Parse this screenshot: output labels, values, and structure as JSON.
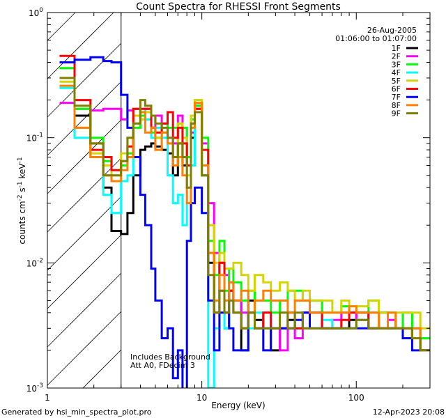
{
  "chart_data": {
    "type": "line",
    "title": "Count Spectra for RHESSI Front Segments",
    "xlabel": "Energy (keV)",
    "ylabel": "counts cm-2 s-1 keV-1",
    "ylabel_parts": [
      "counts cm",
      "-2",
      " s",
      "-1",
      " keV",
      "-1"
    ],
    "xscale": "log",
    "yscale": "log",
    "xlim": [
      1,
      300
    ],
    "ylim": [
      0.001,
      1
    ],
    "xticks": [
      {
        "value": 1,
        "label": "1"
      },
      {
        "value": 10,
        "label": "10"
      },
      {
        "value": 100,
        "label": "100"
      }
    ],
    "yticks": [
      {
        "value": 1,
        "base": "10",
        "exp": "0"
      },
      {
        "value": 0.1,
        "base": "10",
        "exp": "-1"
      },
      {
        "value": 0.01,
        "base": "10",
        "exp": "-2"
      },
      {
        "value": 0.001,
        "base": "10",
        "exp": "-3"
      }
    ],
    "date": "26-Aug-2005",
    "time_range": "01:06:00 to 01:07:00",
    "annotations": [
      "Includes Background",
      "Att A0, FDecim 3"
    ],
    "shaded_region_kev": [
      1,
      3
    ],
    "legend_position": "top-right",
    "bin_edges_kev": [
      1.2,
      1.5,
      1.9,
      2.3,
      2.6,
      3,
      3.3,
      3.6,
      4,
      4.3,
      4.7,
      5,
      5.5,
      6,
      6.5,
      7,
      7.5,
      8,
      8.5,
      9,
      10,
      11,
      12,
      13,
      14,
      15,
      16,
      18,
      20,
      22,
      25,
      28,
      32,
      36,
      40,
      45,
      50,
      60,
      70,
      80,
      90,
      100,
      120,
      140,
      160,
      180,
      200,
      230,
      260,
      300
    ],
    "series": [
      {
        "name": "1F",
        "color": "#000000",
        "values": [
          0.4,
          0.15,
          0.09,
          0.04,
          0.018,
          0.017,
          0.025,
          0.05,
          0.08,
          0.085,
          0.09,
          0.085,
          0.08,
          0.075,
          0.05,
          0.09,
          0.06,
          0.07,
          0.1,
          0.18,
          0.05,
          0.01,
          0.004,
          0.01,
          0.003,
          0.006,
          0.005,
          0.002,
          0.005,
          0.0035,
          0.003,
          0.002,
          0.003,
          0.0035,
          0.003,
          0.004,
          0.004,
          0.003,
          0.003,
          0.003,
          0.0035,
          0.004,
          0.003,
          0.004,
          0.003,
          0.003,
          0.003,
          0.0025,
          0.002
        ]
      },
      {
        "name": "2F",
        "color": "#ff00ff",
        "values": [
          0.19,
          0.17,
          0.165,
          0.17,
          0.17,
          0.14,
          0.165,
          0.17,
          0.16,
          0.17,
          0.12,
          0.15,
          0.13,
          0.1,
          0.09,
          0.15,
          0.12,
          0.07,
          0.11,
          0.17,
          0.09,
          0.03,
          0.012,
          0.006,
          0.008,
          0.007,
          0.005,
          0.004,
          0.004,
          0.003,
          0.004,
          0.003,
          0.002,
          0.003,
          0.0025,
          0.003,
          0.004,
          0.003,
          0.0035,
          0.004,
          0.004,
          0.0035,
          0.004,
          0.003,
          0.0035,
          0.003,
          0.003,
          0.003,
          0.002
        ]
      },
      {
        "name": "3F",
        "color": "#00ff00",
        "values": [
          0.36,
          0.17,
          0.1,
          0.065,
          0.055,
          0.06,
          0.075,
          0.12,
          0.15,
          0.14,
          0.11,
          0.1,
          0.13,
          0.12,
          0.12,
          0.13,
          0.12,
          0.07,
          0.14,
          0.18,
          0.1,
          0.015,
          0.008,
          0.015,
          0.006,
          0.009,
          0.007,
          0.005,
          0.006,
          0.005,
          0.005,
          0.004,
          0.005,
          0.006,
          0.006,
          0.005,
          0.005,
          0.004,
          0.004,
          0.0045,
          0.004,
          0.004,
          0.005,
          0.004,
          0.004,
          0.003,
          0.004,
          0.003,
          0.0025
        ]
      },
      {
        "name": "4F",
        "color": "#00ffff",
        "values": [
          0.25,
          0.1,
          0.07,
          0.035,
          0.025,
          0.045,
          0.05,
          0.17,
          0.17,
          0.14,
          0.1,
          0.12,
          0.1,
          0.05,
          0.03,
          0.035,
          0.02,
          0.03,
          0.06,
          0.2,
          0.05,
          0.001,
          0.003,
          0.004,
          0.003,
          0.005,
          0.004,
          0.003,
          0.003,
          0.004,
          0.003,
          0.003,
          0.004,
          0.004,
          0.003,
          0.004,
          0.004,
          0.0035,
          0.003,
          0.003,
          0.003,
          0.0035,
          0.004,
          0.003,
          0.003,
          0.003,
          0.003,
          0.003,
          0.002
        ]
      },
      {
        "name": "5F",
        "color": "#d4d400",
        "values": [
          0.28,
          0.12,
          0.075,
          0.06,
          0.05,
          0.075,
          0.1,
          0.15,
          0.14,
          0.16,
          0.12,
          0.1,
          0.11,
          0.09,
          0.07,
          0.13,
          0.1,
          0.05,
          0.15,
          0.2,
          0.06,
          0.02,
          0.01,
          0.012,
          0.009,
          0.009,
          0.01,
          0.008,
          0.006,
          0.008,
          0.007,
          0.006,
          0.007,
          0.006,
          0.005,
          0.006,
          0.005,
          0.005,
          0.004,
          0.005,
          0.004,
          0.0045,
          0.005,
          0.004,
          0.004,
          0.004,
          0.004,
          0.004,
          0.003
        ]
      },
      {
        "name": "6F",
        "color": "#ff0000",
        "values": [
          0.45,
          0.2,
          0.08,
          0.07,
          0.055,
          0.065,
          0.085,
          0.17,
          0.17,
          0.17,
          0.12,
          0.11,
          0.13,
          0.16,
          0.1,
          0.12,
          0.09,
          0.06,
          0.13,
          0.17,
          0.08,
          0.012,
          0.004,
          0.01,
          0.004,
          0.006,
          0.004,
          0.003,
          0.004,
          0.003,
          0.004,
          0.003,
          0.003,
          0.004,
          0.003,
          0.004,
          0.004,
          0.003,
          0.003,
          0.0035,
          0.004,
          0.004,
          0.003,
          0.003,
          0.003,
          0.003,
          0.003,
          0.0025,
          0.002
        ]
      },
      {
        "name": "7F",
        "color": "#0000ff",
        "values": [
          0.4,
          0.42,
          0.44,
          0.41,
          0.4,
          0.22,
          0.12,
          0.07,
          0.035,
          0.02,
          0.009,
          0.005,
          0.0025,
          0.003,
          0.0012,
          0.002,
          0.0008,
          0.015,
          0.03,
          0.04,
          0.025,
          0.005,
          0.002,
          0.004,
          0.004,
          0.003,
          0.002,
          0.002,
          0.004,
          0.003,
          0.002,
          0.003,
          0.003,
          0.003,
          0.0035,
          0.004,
          0.003,
          0.003,
          0.003,
          0.003,
          0.003,
          0.003,
          0.003,
          0.003,
          0.003,
          0.003,
          0.0025,
          0.002,
          0.002
        ]
      },
      {
        "name": "8F",
        "color": "#ff8000",
        "values": [
          0.26,
          0.12,
          0.07,
          0.05,
          0.045,
          0.055,
          0.07,
          0.13,
          0.16,
          0.11,
          0.12,
          0.08,
          0.11,
          0.09,
          0.06,
          0.07,
          0.05,
          0.03,
          0.12,
          0.19,
          0.06,
          0.012,
          0.005,
          0.008,
          0.005,
          0.007,
          0.005,
          0.006,
          0.004,
          0.005,
          0.006,
          0.005,
          0.005,
          0.004,
          0.005,
          0.005,
          0.004,
          0.004,
          0.004,
          0.004,
          0.0045,
          0.004,
          0.004,
          0.003,
          0.004,
          0.003,
          0.003,
          0.003,
          0.002
        ]
      },
      {
        "name": "9F",
        "color": "#808000",
        "values": [
          0.3,
          0.18,
          0.09,
          0.05,
          0.05,
          0.065,
          0.1,
          0.13,
          0.2,
          0.18,
          0.15,
          0.13,
          0.12,
          0.1,
          0.07,
          0.09,
          0.07,
          0.04,
          0.13,
          0.16,
          0.05,
          0.008,
          0.004,
          0.006,
          0.004,
          0.005,
          0.004,
          0.003,
          0.004,
          0.003,
          0.003,
          0.003,
          0.004,
          0.003,
          0.004,
          0.003,
          0.003,
          0.003,
          0.003,
          0.003,
          0.003,
          0.0035,
          0.003,
          0.003,
          0.003,
          0.003,
          0.003,
          0.0025,
          0.002
        ]
      }
    ]
  },
  "footer": {
    "generated_by": "Generated by hsi_min_spectra_plot.pro",
    "timestamp": "12-Apr-2023 20:08"
  }
}
